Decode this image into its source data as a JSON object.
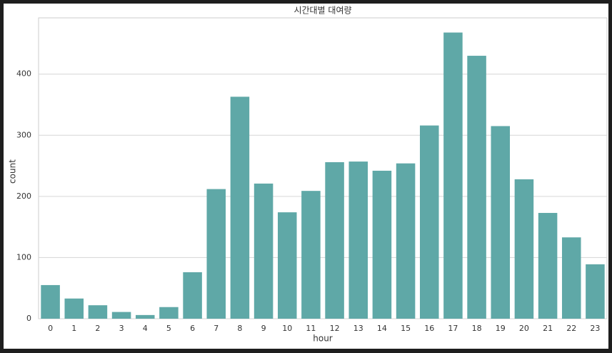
{
  "chart_data": {
    "type": "bar",
    "title": "시간대별 대여량",
    "xlabel": "hour",
    "ylabel": "count",
    "categories": [
      "0",
      "1",
      "2",
      "3",
      "4",
      "5",
      "6",
      "7",
      "8",
      "9",
      "10",
      "11",
      "12",
      "13",
      "14",
      "15",
      "16",
      "17",
      "18",
      "19",
      "20",
      "21",
      "22",
      "23"
    ],
    "values": [
      55,
      33,
      22,
      11,
      6,
      19,
      76,
      212,
      363,
      221,
      174,
      209,
      256,
      257,
      242,
      254,
      316,
      468,
      430,
      315,
      228,
      173,
      133,
      89
    ],
    "color": "#5fa8a7",
    "ylim": [
      0,
      492
    ],
    "yticks": [
      0,
      100,
      200,
      300,
      400
    ],
    "grid": true
  }
}
